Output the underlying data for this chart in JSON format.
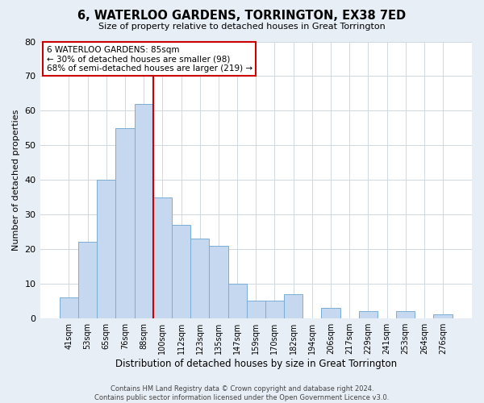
{
  "title": "6, WATERLOO GARDENS, TORRINGTON, EX38 7ED",
  "subtitle": "Size of property relative to detached houses in Great Torrington",
  "xlabel": "Distribution of detached houses by size in Great Torrington",
  "ylabel": "Number of detached properties",
  "footer_line1": "Contains HM Land Registry data © Crown copyright and database right 2024.",
  "footer_line2": "Contains public sector information licensed under the Open Government Licence v3.0.",
  "bin_labels": [
    "41sqm",
    "53sqm",
    "65sqm",
    "76sqm",
    "88sqm",
    "100sqm",
    "112sqm",
    "123sqm",
    "135sqm",
    "147sqm",
    "159sqm",
    "170sqm",
    "182sqm",
    "194sqm",
    "206sqm",
    "217sqm",
    "229sqm",
    "241sqm",
    "253sqm",
    "264sqm",
    "276sqm"
  ],
  "bar_values": [
    6,
    22,
    40,
    55,
    62,
    35,
    27,
    23,
    21,
    10,
    5,
    5,
    7,
    0,
    3,
    0,
    2,
    0,
    2,
    0,
    1
  ],
  "bar_color": "#c5d8f0",
  "bar_edge_color": "#7aadd4",
  "property_line_color": "#cc0000",
  "annotation_title": "6 WATERLOO GARDENS: 85sqm",
  "annotation_line1": "← 30% of detached houses are smaller (98)",
  "annotation_line2": "68% of semi-detached houses are larger (219) →",
  "annotation_box_facecolor": "white",
  "annotation_box_edgecolor": "#cc0000",
  "ylim": [
    0,
    80
  ],
  "yticks": [
    0,
    10,
    20,
    30,
    40,
    50,
    60,
    70,
    80
  ],
  "figure_bg": "#e8eef5",
  "plot_bg": "white",
  "grid_color": "#d0d8e0"
}
